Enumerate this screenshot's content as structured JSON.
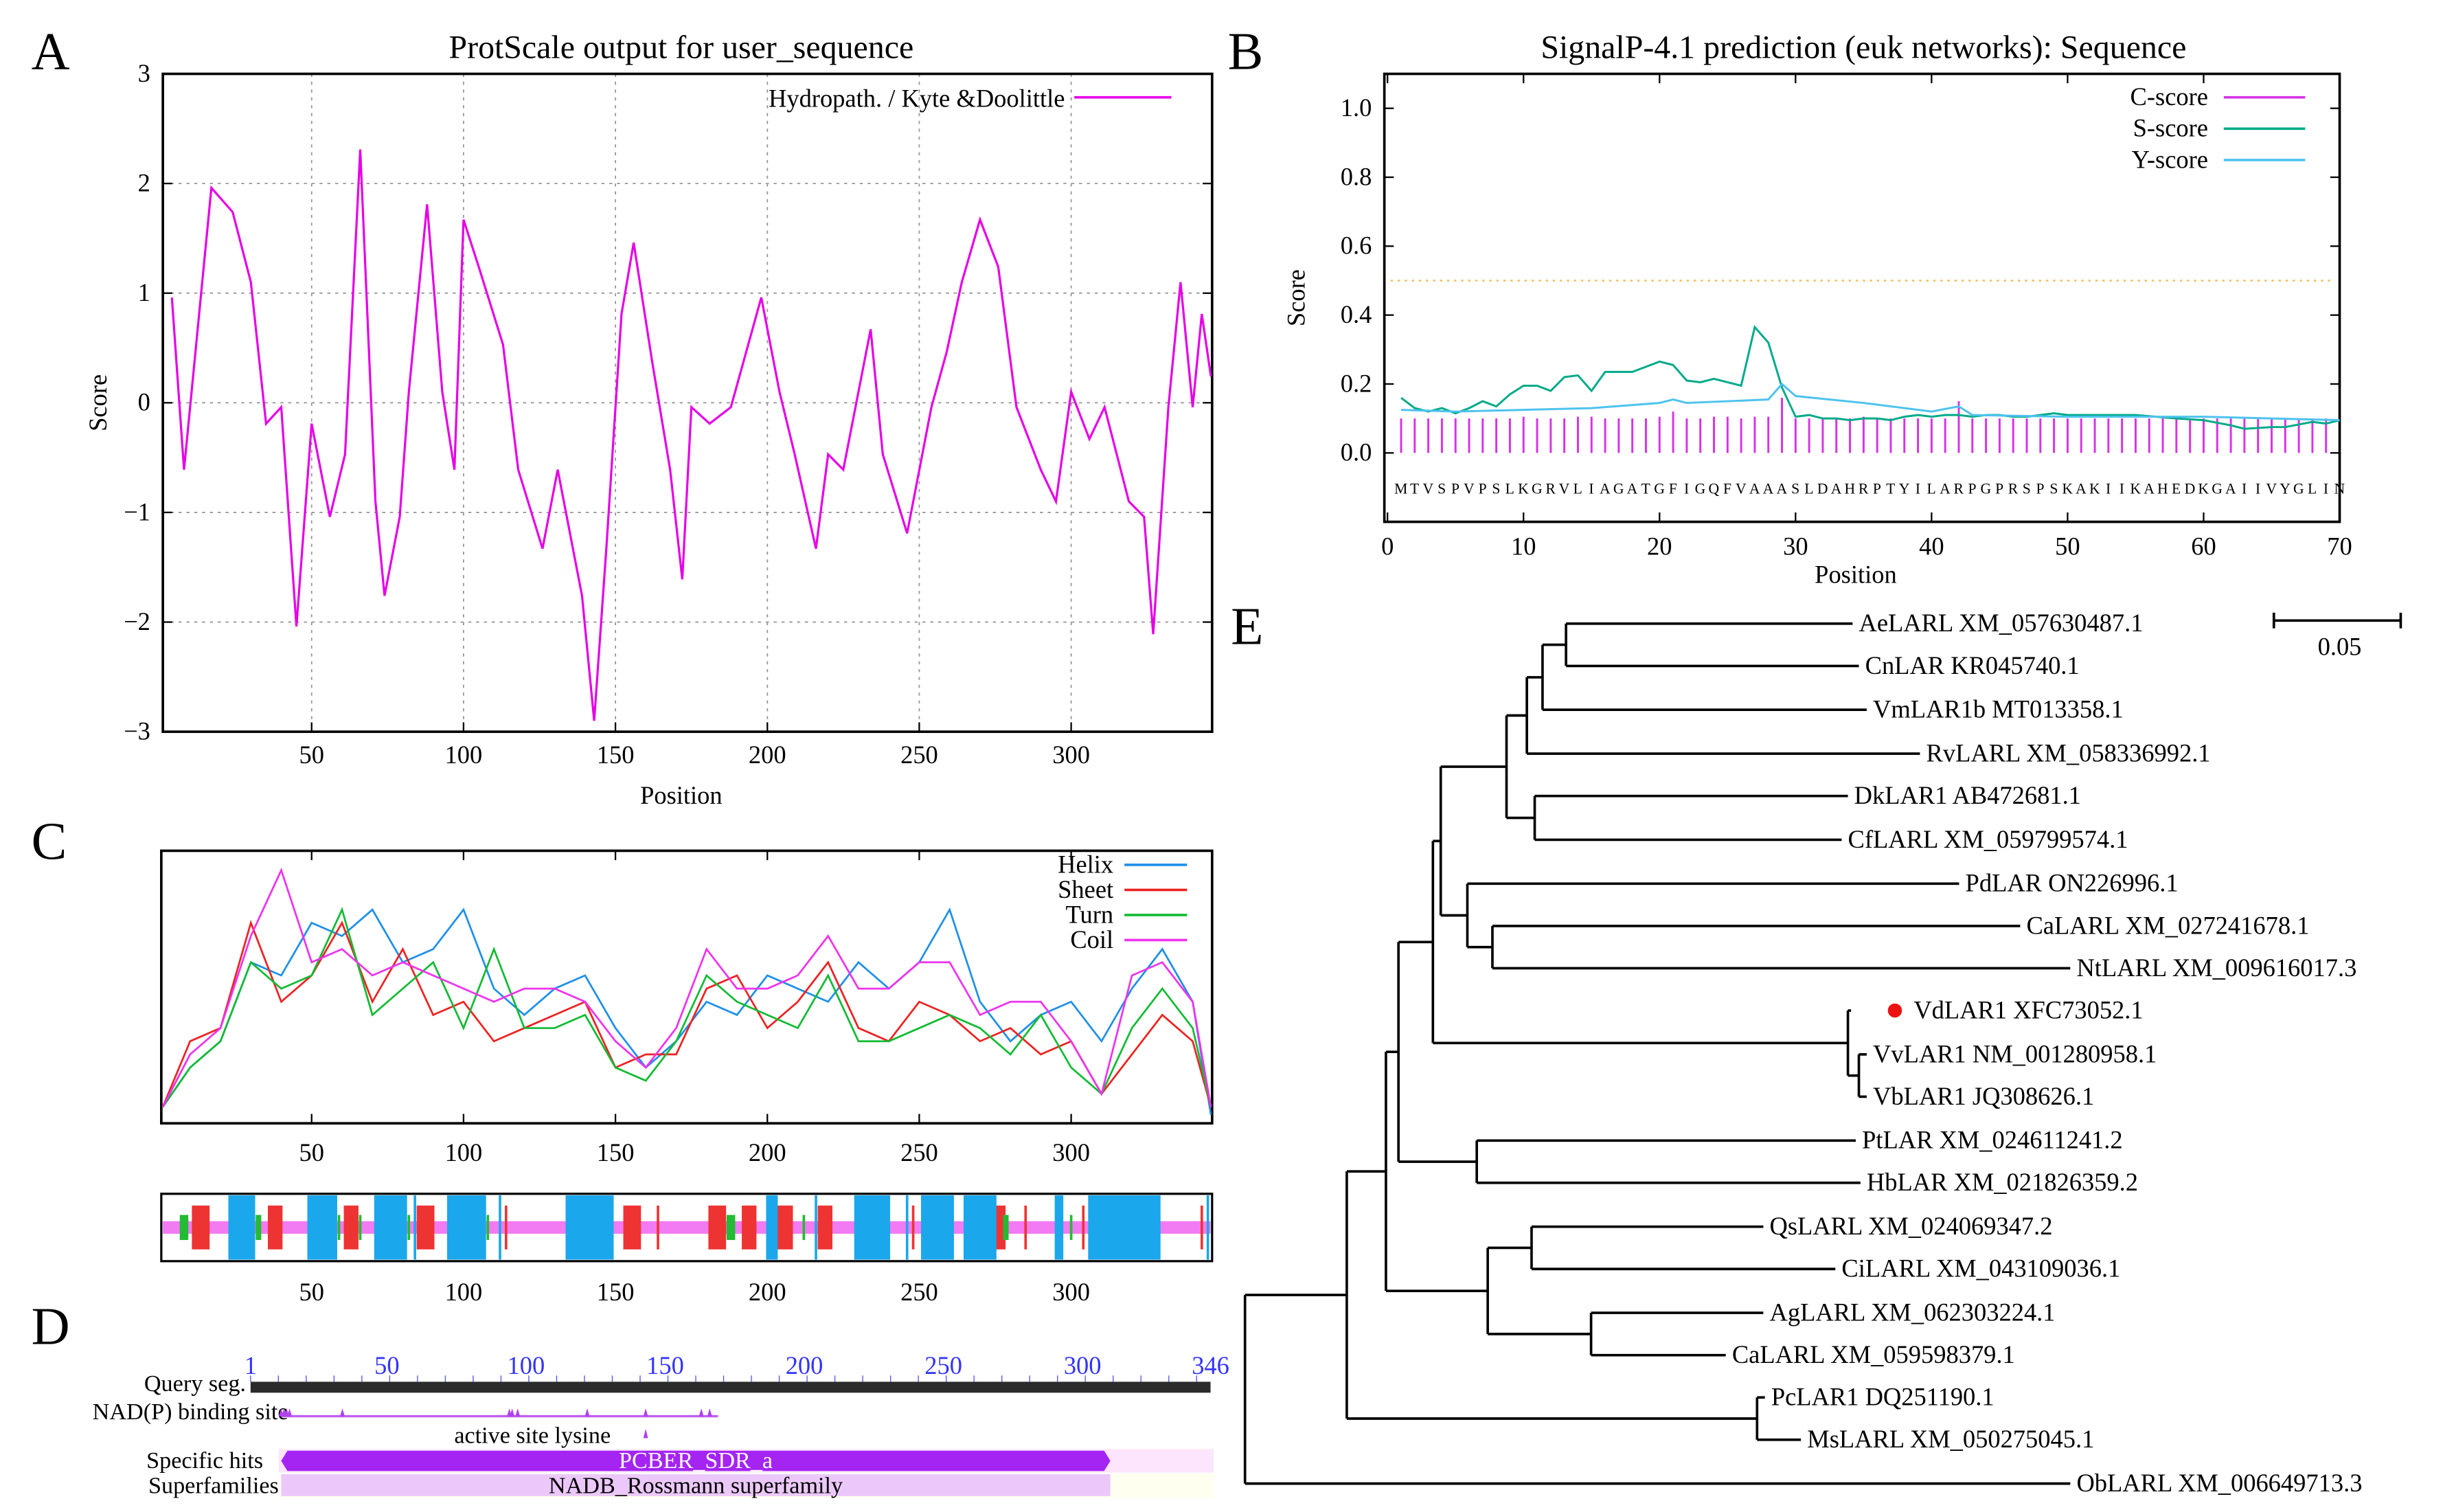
{
  "panel_labels": {
    "a": "A",
    "b": "B",
    "c": "C",
    "d": "D",
    "e": "E"
  },
  "chart_data": [
    {
      "id": "A",
      "type": "line",
      "title": "ProtScale output for user_sequence",
      "xlabel": "Position",
      "ylabel": "Score",
      "xlim": [
        1,
        346
      ],
      "ylim": [
        -3,
        3
      ],
      "xticks": [
        50,
        100,
        150,
        200,
        250,
        300
      ],
      "yticks": [
        -3,
        -2,
        -1,
        0,
        1,
        2,
        3
      ],
      "grid": true,
      "legend_position": "top-right",
      "series": [
        {
          "name": "Hydropath. / Kyte &Doolittle",
          "color": "#e600e6",
          "x": [
            4,
            8,
            17,
            24,
            30,
            35,
            40,
            45,
            50,
            56,
            61,
            66,
            71,
            74,
            79,
            82,
            88,
            93,
            97,
            100,
            105,
            113,
            118,
            126,
            131,
            136,
            139,
            143,
            147,
            152,
            156,
            162,
            168,
            172,
            175,
            181,
            188,
            198,
            204,
            209,
            216,
            220,
            225,
            234,
            238,
            246,
            254,
            259,
            264,
            270,
            276,
            282,
            290,
            295,
            300,
            306,
            311,
            319,
            324,
            327,
            332,
            336,
            340,
            343,
            346
          ],
          "y": [
            0.96,
            -0.61,
            1.96,
            1.74,
            1.1,
            -0.19,
            -0.04,
            -2.04,
            -0.19,
            -1.04,
            -0.47,
            2.31,
            -0.9,
            -1.76,
            -1.04,
            0.1,
            1.81,
            0.1,
            -0.61,
            1.67,
            1.24,
            0.53,
            -0.61,
            -1.33,
            -0.61,
            -1.33,
            -1.76,
            -2.9,
            -1.33,
            0.81,
            1.46,
            0.39,
            -0.61,
            -1.61,
            -0.04,
            -0.19,
            -0.04,
            0.96,
            0.1,
            -0.47,
            -1.33,
            -0.47,
            -0.61,
            0.67,
            -0.47,
            -1.19,
            -0.04,
            0.46,
            1.1,
            1.67,
            1.24,
            -0.04,
            -0.61,
            -0.9,
            0.1,
            -0.33,
            -0.04,
            -0.9,
            -1.04,
            -2.11,
            -0.04,
            1.1,
            -0.04,
            0.81,
            0.24
          ]
        }
      ]
    },
    {
      "id": "B",
      "type": "line",
      "title": "SignalP-4.1 prediction (euk networks): Sequence",
      "xlabel": "Position",
      "ylabel": "Score",
      "xlim": [
        0,
        70
      ],
      "ylim": [
        -0.15,
        1.1
      ],
      "xticks": [
        0,
        10,
        20,
        30,
        40,
        50,
        60,
        70
      ],
      "yticks": [
        "0.0",
        "0.2",
        "0.4",
        "0.6",
        "0.8",
        "1.0"
      ],
      "threshold": 0.5,
      "threshold_color": "#f5c26b",
      "sequence": "MTVSPVPSLKGRVLIAGATGFIGQFVAAASLDAHRPTYILARPGPRSPSKAKIIKAHEDKGAIIVYGLIN",
      "legend_position": "top-right",
      "series": [
        {
          "name": "C-score",
          "color": "#d633e6",
          "style": "impulses",
          "x": [
            1,
            2,
            3,
            4,
            5,
            6,
            7,
            8,
            9,
            10,
            11,
            12,
            13,
            14,
            15,
            16,
            17,
            18,
            19,
            20,
            21,
            22,
            23,
            24,
            25,
            26,
            27,
            28,
            29,
            30,
            31,
            32,
            33,
            34,
            35,
            36,
            37,
            38,
            39,
            40,
            41,
            42,
            43,
            44,
            45,
            46,
            47,
            48,
            49,
            50,
            51,
            52,
            53,
            54,
            55,
            56,
            57,
            58,
            59,
            60,
            61,
            62,
            63,
            64,
            65,
            66,
            67,
            68,
            69
          ],
          "y": [
            0.1,
            0.1,
            0.1,
            0.1,
            0.1,
            0.1,
            0.1,
            0.1,
            0.1,
            0.105,
            0.1,
            0.1,
            0.1,
            0.105,
            0.105,
            0.1,
            0.1,
            0.1,
            0.1,
            0.105,
            0.12,
            0.1,
            0.1,
            0.105,
            0.105,
            0.1,
            0.105,
            0.105,
            0.16,
            0.1,
            0.1,
            0.1,
            0.1,
            0.1,
            0.105,
            0.1,
            0.1,
            0.1,
            0.1,
            0.1,
            0.1,
            0.15,
            0.1,
            0.1,
            0.1,
            0.1,
            0.1,
            0.1,
            0.1,
            0.1,
            0.1,
            0.1,
            0.1,
            0.1,
            0.1,
            0.1,
            0.1,
            0.1,
            0.1,
            0.1,
            0.1,
            0.1,
            0.1,
            0.1,
            0.1,
            0.1,
            0.1,
            0.1,
            0.1
          ]
        },
        {
          "name": "S-score",
          "color": "#00aa88",
          "style": "line",
          "x": [
            1,
            2,
            3,
            4,
            5,
            6,
            7,
            8,
            9,
            10,
            11,
            12,
            13,
            14,
            15,
            16,
            17,
            18,
            19,
            20,
            21,
            22,
            23,
            24,
            25,
            26,
            27,
            28,
            29,
            30,
            31,
            32,
            33,
            34,
            35,
            36,
            37,
            38,
            39,
            40,
            41,
            42,
            43,
            44,
            45,
            46,
            47,
            48,
            49,
            50,
            55,
            58,
            60,
            62,
            63,
            65,
            66,
            68,
            69,
            70
          ],
          "y": [
            0.16,
            0.13,
            0.12,
            0.13,
            0.115,
            0.13,
            0.15,
            0.135,
            0.17,
            0.195,
            0.195,
            0.18,
            0.22,
            0.225,
            0.18,
            0.235,
            0.235,
            0.235,
            0.25,
            0.265,
            0.255,
            0.21,
            0.205,
            0.215,
            0.205,
            0.195,
            0.365,
            0.32,
            0.19,
            0.105,
            0.11,
            0.1,
            0.1,
            0.095,
            0.1,
            0.1,
            0.095,
            0.105,
            0.11,
            0.105,
            0.11,
            0.11,
            0.105,
            0.11,
            0.11,
            0.105,
            0.105,
            0.11,
            0.115,
            0.11,
            0.11,
            0.1,
            0.095,
            0.08,
            0.07,
            0.075,
            0.075,
            0.09,
            0.085,
            0.095
          ]
        },
        {
          "name": "Y-score",
          "color": "#4dc3ee",
          "style": "line",
          "x": [
            1,
            5,
            10,
            15,
            20,
            21,
            22,
            25,
            28,
            29,
            30,
            35,
            40,
            42,
            43,
            50,
            60,
            70
          ],
          "y": [
            0.125,
            0.12,
            0.125,
            0.13,
            0.145,
            0.155,
            0.145,
            0.15,
            0.155,
            0.2,
            0.165,
            0.145,
            0.12,
            0.135,
            0.11,
            0.105,
            0.105,
            0.095
          ]
        }
      ]
    },
    {
      "id": "C",
      "type": "line",
      "xlim": [
        1,
        346
      ],
      "xticks": [
        50,
        100,
        150,
        200,
        250,
        300
      ],
      "legend_position": "top-right",
      "x": [
        1,
        10,
        20,
        30,
        40,
        50,
        60,
        70,
        80,
        90,
        100,
        110,
        120,
        130,
        140,
        150,
        160,
        170,
        180,
        190,
        200,
        210,
        220,
        230,
        240,
        250,
        260,
        270,
        280,
        290,
        300,
        310,
        320,
        330,
        340,
        346
      ],
      "series": [
        {
          "name": "Helix",
          "color": "#1e90e8",
          "values": [
            0.05,
            0.2,
            0.3,
            0.6,
            0.55,
            0.75,
            0.7,
            0.8,
            0.6,
            0.65,
            0.8,
            0.5,
            0.4,
            0.5,
            0.55,
            0.35,
            0.2,
            0.3,
            0.45,
            0.4,
            0.55,
            0.5,
            0.45,
            0.6,
            0.5,
            0.6,
            0.8,
            0.45,
            0.3,
            0.4,
            0.45,
            0.3,
            0.5,
            0.65,
            0.45,
            0.02
          ]
        },
        {
          "name": "Sheet",
          "color": "#ee2222",
          "values": [
            0.05,
            0.3,
            0.35,
            0.75,
            0.45,
            0.55,
            0.75,
            0.45,
            0.65,
            0.4,
            0.45,
            0.3,
            0.35,
            0.4,
            0.45,
            0.2,
            0.25,
            0.25,
            0.5,
            0.55,
            0.35,
            0.45,
            0.6,
            0.35,
            0.3,
            0.45,
            0.4,
            0.3,
            0.35,
            0.25,
            0.3,
            0.1,
            0.25,
            0.4,
            0.3,
            0.05
          ]
        },
        {
          "name": "Turn",
          "color": "#11bb33",
          "values": [
            0.05,
            0.2,
            0.3,
            0.6,
            0.5,
            0.55,
            0.8,
            0.4,
            0.5,
            0.6,
            0.35,
            0.65,
            0.35,
            0.35,
            0.4,
            0.2,
            0.15,
            0.3,
            0.55,
            0.45,
            0.4,
            0.35,
            0.55,
            0.3,
            0.3,
            0.35,
            0.4,
            0.35,
            0.25,
            0.4,
            0.2,
            0.1,
            0.35,
            0.5,
            0.35,
            0.05
          ]
        },
        {
          "name": "Coil",
          "color": "#ee33ee",
          "values": [
            0.05,
            0.25,
            0.35,
            0.7,
            0.95,
            0.6,
            0.65,
            0.55,
            0.6,
            0.55,
            0.5,
            0.45,
            0.5,
            0.5,
            0.45,
            0.3,
            0.2,
            0.35,
            0.65,
            0.5,
            0.5,
            0.55,
            0.7,
            0.5,
            0.5,
            0.6,
            0.6,
            0.4,
            0.45,
            0.45,
            0.3,
            0.1,
            0.55,
            0.6,
            0.45,
            0.05
          ]
        }
      ],
      "structure_bar": {
        "helix": [
          [
            23,
            31
          ],
          [
            49,
            58
          ],
          [
            71,
            81
          ],
          [
            84,
            84
          ],
          [
            95,
            107
          ],
          [
            112,
            112
          ],
          [
            134,
            149
          ],
          [
            200,
            203
          ],
          [
            216,
            216
          ],
          [
            229,
            240
          ],
          [
            246,
            246
          ],
          [
            251,
            261
          ],
          [
            265,
            275
          ],
          [
            295,
            297
          ],
          [
            306,
            329
          ],
          [
            345,
            345
          ]
        ],
        "sheet": [
          [
            11,
            16
          ],
          [
            36,
            40
          ],
          [
            61,
            65
          ],
          [
            85,
            90
          ],
          [
            114,
            114
          ],
          [
            153,
            158
          ],
          [
            164,
            164
          ],
          [
            181,
            186
          ],
          [
            192,
            196
          ],
          [
            203,
            208
          ],
          [
            217,
            221
          ],
          [
            248,
            248
          ],
          [
            275,
            278
          ],
          [
            285,
            285
          ],
          [
            304,
            304
          ],
          [
            343,
            343
          ]
        ],
        "turn": [
          [
            7,
            9
          ],
          [
            32,
            33
          ],
          [
            59,
            59
          ],
          [
            66,
            66
          ],
          [
            82,
            82
          ],
          [
            108,
            108
          ],
          [
            187,
            189
          ],
          [
            212,
            212
          ],
          [
            278,
            279
          ],
          [
            300,
            300
          ]
        ]
      }
    },
    {
      "id": "D",
      "type": "domain-map",
      "length": 346,
      "ticks": [
        1,
        50,
        100,
        150,
        200,
        250,
        300,
        346
      ],
      "query_label": "Query seg.",
      "site_label": "NAD(P) binding site",
      "nadp_sites": [
        12,
        13,
        14,
        15,
        34,
        94,
        95,
        97,
        122,
        143,
        163,
        166
      ],
      "nadp_span": [
        12,
        169
      ],
      "active_site_label": "active site lysine",
      "active_site": 143,
      "specific_hits_label": "Specific hits",
      "superfamilies_label": "Superfamilies",
      "specific_hit": {
        "name": "PCBER_SDR_a",
        "start": 12,
        "end": 310,
        "color": "#a424f2"
      },
      "superfamily": {
        "name": "NADB_Rossmann superfamily",
        "start": 12,
        "end": 310,
        "color": "#ecc8fa"
      }
    }
  ],
  "tree": {
    "scale_label": "0.05",
    "highlight_color": "#ee1111",
    "leaves": [
      "AeLARL XM_057630487.1",
      "CnLAR KR045740.1",
      "VmLAR1b MT013358.1",
      "RvLARL XM_058336992.1",
      "DkLAR1 AB472681.1",
      "CfLARL XM_059799574.1",
      "PdLAR ON226996.1",
      "CaLARL XM_027241678.1",
      "NtLARL XM_009616017.3",
      "VdLAR1 XFC73052.1",
      "VvLAR1 NM_001280958.1",
      "VbLAR1 JQ308626.1",
      "PtLAR XM_024611241.2",
      "HbLAR XM_021826359.2",
      "QsLARL XM_024069347.2",
      "CiLARL XM_043109036.1",
      "AgLARL  XM_062303224.1",
      "CaLARL XM_059598379.1",
      "PcLAR1 DQ251190.1",
      "MsLARL XM_050275045.1",
      "ObLARL XM_006649713.3"
    ],
    "highlighted_leaf": 9
  }
}
